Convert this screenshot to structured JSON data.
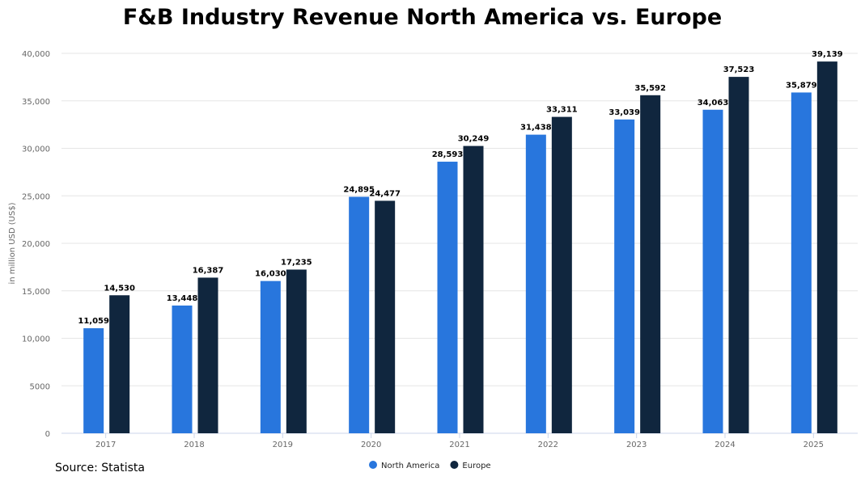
{
  "chart_data": {
    "type": "bar",
    "title": "F&B Industry Revenue North America vs. Europe",
    "source": "Source: Statista",
    "ylabel": "in million USD (US$)",
    "xlabel": "",
    "ylim": [
      0,
      40000
    ],
    "yticks": [
      "0",
      "5000",
      "10,000",
      "15,000",
      "20,000",
      "25,000",
      "30,000",
      "35,000",
      "40,000"
    ],
    "ytick_values": [
      0,
      5000,
      10000,
      15000,
      20000,
      25000,
      30000,
      35000,
      40000
    ],
    "grid": true,
    "legend": "bottom-center",
    "categories": [
      "2017",
      "2018",
      "2019",
      "2020",
      "2021",
      "2022",
      "2023",
      "2024",
      "2025"
    ],
    "series": [
      {
        "name": "North America",
        "color": "#2876dd",
        "values": [
          11059,
          13448,
          16030,
          24895,
          28593,
          31438,
          33039,
          34063,
          35879
        ],
        "labels": [
          "11,059",
          "13,448",
          "16,030",
          "24,895",
          "28,593",
          "31,438",
          "33,039",
          "34,063",
          "35,879"
        ]
      },
      {
        "name": "Europe",
        "color": "#10263e",
        "values": [
          14530,
          16387,
          17235,
          24477,
          30249,
          33311,
          35592,
          37523,
          39139
        ],
        "labels": [
          "14,530",
          "16,387",
          "17,235",
          "24,477",
          "30,249",
          "33,311",
          "35,592",
          "37,523",
          "39,139"
        ]
      }
    ]
  }
}
